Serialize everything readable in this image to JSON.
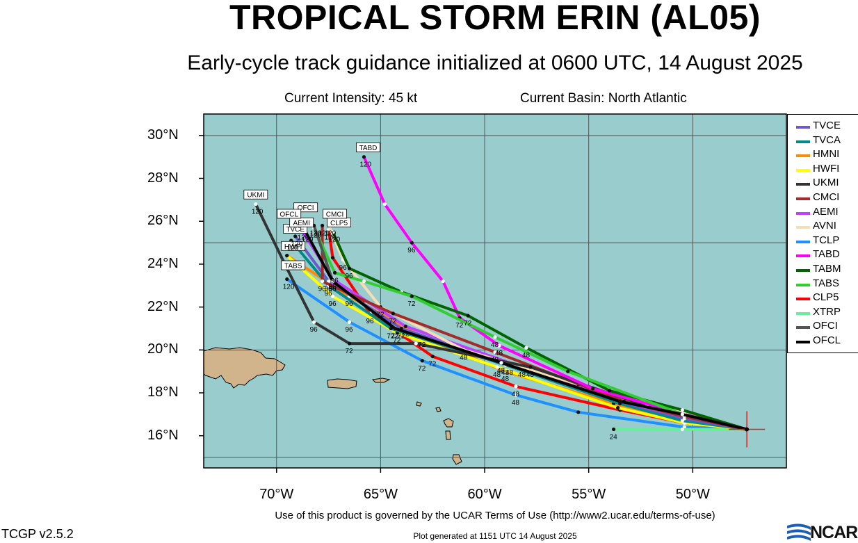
{
  "title": "TROPICAL STORM ERIN (AL05)",
  "subtitle": "Early-cycle track guidance initialized at 0600 UTC, 14 August 2025",
  "current_intensity": "Current Intensity: 45 kt",
  "current_basin": "Current Basin: North Atlantic",
  "colors": {
    "ocean": "#99cccc",
    "land": "#d2b48c",
    "grid": "#555555",
    "storm": "#e02020"
  },
  "axes": {
    "lon_range": [
      -73.5,
      -45.5
    ],
    "lat_range": [
      14.5,
      31
    ],
    "x_ticks": [
      "70°W",
      "65°W",
      "60°W",
      "55°W",
      "50°W"
    ],
    "y_ticks": [
      "30°N",
      "28°N",
      "26°N",
      "24°N",
      "22°N",
      "20°N",
      "18°N",
      "16°N"
    ]
  },
  "storm_position": {
    "lon": -47.4,
    "lat": 16.3
  },
  "legend": [
    {
      "name": "TVCE",
      "color": "#6a5acd"
    },
    {
      "name": "TVCA",
      "color": "#008b8b"
    },
    {
      "name": "HMNI",
      "color": "#ff8c00"
    },
    {
      "name": "HWFI",
      "color": "#ffff00"
    },
    {
      "name": "UKMI",
      "color": "#333333"
    },
    {
      "name": "CMCI",
      "color": "#a52a2a"
    },
    {
      "name": "AEMI",
      "color": "#bf40ff"
    },
    {
      "name": "AVNI",
      "color": "#f5deb3"
    },
    {
      "name": "TCLP",
      "color": "#1e90ff"
    },
    {
      "name": "TABD",
      "color": "#ff00ff"
    },
    {
      "name": "TABM",
      "color": "#006400"
    },
    {
      "name": "TABS",
      "color": "#32cd32"
    },
    {
      "name": "CLP5",
      "color": "#ff0000"
    },
    {
      "name": "XTRP",
      "color": "#66ee99"
    },
    {
      "name": "OFCI",
      "color": "#555555"
    },
    {
      "name": "OFCL",
      "color": "#000000"
    }
  ],
  "tracks": [
    {
      "name": "TCLP",
      "color": "#1e90ff",
      "points": [
        [
          -47.4,
          16.3
        ],
        [
          -50.4,
          16.4
        ],
        [
          -55.5,
          17.1
        ],
        [
          -58.5,
          17.9
        ],
        [
          -63,
          19.5
        ],
        [
          -66.5,
          21.3
        ],
        [
          -69.5,
          23.3
        ]
      ],
      "label_lon": -69.8,
      "label_lat": 23.3,
      "show_label": false,
      "tau": [
        [
          -58.5,
          17.9,
          "48"
        ],
        [
          -63,
          19.5,
          "72"
        ],
        [
          -66.5,
          21.3,
          "96"
        ],
        [
          -69.5,
          23.3,
          "120"
        ]
      ]
    },
    {
      "name": "XTRP",
      "color": "#66ee99",
      "points": [
        [
          -47.4,
          16.3
        ],
        [
          -50.5,
          16.3
        ],
        [
          -53.8,
          16.3
        ]
      ],
      "tau": [
        [
          -53.8,
          16.3,
          "24"
        ]
      ]
    },
    {
      "name": "CLP5",
      "color": "#ff0000",
      "points": [
        [
          -47.4,
          16.3
        ],
        [
          -50.4,
          16.6
        ],
        [
          -53.5,
          17.2
        ],
        [
          -58.5,
          18.3
        ],
        [
          -62.5,
          19.7
        ],
        [
          -65.5,
          21.7
        ],
        [
          -67.3,
          24.3
        ],
        [
          -67.5,
          25.6
        ]
      ],
      "label_lon": -67,
      "label_lat": 25.9,
      "tau": [
        [
          -58.5,
          18.3,
          "48"
        ],
        [
          -62.5,
          19.7,
          "72"
        ],
        [
          -65.5,
          21.7,
          "96"
        ],
        [
          -67.5,
          25.6,
          "120"
        ]
      ]
    },
    {
      "name": "HMNI",
      "color": "#ff8c00",
      "points": [
        [
          -47.4,
          16.3
        ],
        [
          -50.4,
          16.7
        ],
        [
          -53.8,
          17.5
        ],
        [
          -59,
          19
        ],
        [
          -63,
          20.6
        ],
        [
          -66.5,
          22.5
        ],
        [
          -69.5,
          24.4
        ]
      ],
      "tau": [
        [
          -59,
          19,
          "48"
        ],
        [
          -63,
          20.6,
          "72"
        ],
        [
          -66.5,
          22.5,
          "96"
        ],
        [
          -69.5,
          24.4,
          "120"
        ]
      ]
    },
    {
      "name": "HWFI",
      "color": "#ffff00",
      "points": [
        [
          -47.4,
          16.3
        ],
        [
          -50.4,
          16.6
        ],
        [
          -53.6,
          17.3
        ],
        [
          -59.4,
          19.2
        ],
        [
          -64.2,
          20.8
        ],
        [
          -67.3,
          22.5
        ],
        [
          -69.5,
          24.4
        ]
      ],
      "label_lon": -69.2,
      "label_lat": 24.8,
      "tau": [
        [
          -59.4,
          19.2,
          "48"
        ],
        [
          -64.2,
          20.8,
          "72"
        ],
        [
          -67.3,
          22.5,
          "96"
        ],
        [
          -69.5,
          24.4,
          "120"
        ]
      ]
    },
    {
      "name": "TVCA",
      "color": "#008b8b",
      "points": [
        [
          -47.4,
          16.3
        ],
        [
          -50.5,
          16.7
        ],
        [
          -53.5,
          17.5
        ],
        [
          -59,
          19.3
        ],
        [
          -64.5,
          21
        ],
        [
          -67.5,
          23
        ],
        [
          -69.3,
          25.1
        ]
      ],
      "tau": [
        [
          -59,
          19.3,
          "48"
        ],
        [
          -64.5,
          21,
          "72"
        ],
        [
          -67.5,
          23,
          "96"
        ],
        [
          -69.3,
          25.1,
          "120"
        ]
      ]
    },
    {
      "name": "TVCE",
      "color": "#6a5acd",
      "points": [
        [
          -47.4,
          16.3
        ],
        [
          -50.4,
          16.8
        ],
        [
          -53.5,
          17.6
        ],
        [
          -58.8,
          19.3
        ],
        [
          -64,
          21
        ],
        [
          -67.5,
          23.2
        ],
        [
          -69.1,
          25.3
        ]
      ],
      "label_lon": -69.1,
      "label_lat": 25.6,
      "tau": [
        [
          -58.8,
          19.3,
          "48"
        ],
        [
          -64,
          21,
          "72"
        ],
        [
          -67.5,
          23.2,
          "96"
        ],
        [
          -69.1,
          25.3,
          "120"
        ]
      ]
    },
    {
      "name": "AEMI",
      "color": "#bf40ff",
      "points": [
        [
          -47.4,
          16.3
        ],
        [
          -50.4,
          16.9
        ],
        [
          -53.5,
          17.6
        ],
        [
          -58.2,
          19.2
        ],
        [
          -63.8,
          21.1
        ],
        [
          -67.3,
          23.3
        ],
        [
          -68.8,
          25.6
        ]
      ],
      "label_lon": -68.8,
      "label_lat": 25.9,
      "tau": [
        [
          -58.2,
          19.2,
          "48"
        ],
        [
          -63.8,
          21.1,
          "72"
        ],
        [
          -67.3,
          23.3,
          "96"
        ],
        [
          -68.8,
          25.6,
          "120"
        ]
      ]
    },
    {
      "name": "AVNI",
      "color": "#f5deb3",
      "points": [
        [
          -47.4,
          16.3
        ],
        [
          -50.5,
          17.1
        ],
        [
          -55.5,
          18.4
        ],
        [
          -61,
          20
        ],
        [
          -65,
          22
        ],
        [
          -66.8,
          24.2
        ],
        [
          -67.5,
          25.8
        ]
      ],
      "tau": [
        [
          -61,
          20,
          "48"
        ],
        [
          -65,
          22,
          "72"
        ],
        [
          -66.8,
          24.2,
          "96"
        ],
        [
          -67.5,
          25.8,
          "120"
        ]
      ]
    },
    {
      "name": "CMCI",
      "color": "#a52a2a",
      "points": [
        [
          -47.4,
          16.3
        ],
        [
          -50.4,
          16.9
        ],
        [
          -53.3,
          17.6
        ],
        [
          -59.5,
          19.9
        ],
        [
          -64.4,
          21.7
        ],
        [
          -67.8,
          23.2
        ],
        [
          -67.8,
          25.8
        ]
      ],
      "label_lon": -67.2,
      "label_lat": 26.3,
      "tau": [
        [
          -59.5,
          19.9,
          "48"
        ],
        [
          -64.4,
          21.7,
          "72"
        ],
        [
          -67.8,
          23.2,
          "96"
        ],
        [
          -67.8,
          25.8,
          "120"
        ]
      ]
    },
    {
      "name": "UKMI",
      "color": "#333333",
      "points": [
        [
          -47.4,
          16.3
        ],
        [
          -52.2,
          17.4
        ],
        [
          -57.8,
          19.2
        ],
        [
          -63.3,
          20.3
        ],
        [
          -66.5,
          20.3
        ],
        [
          -68.2,
          21.3
        ],
        [
          -69.5,
          23.8
        ],
        [
          -71,
          26.8
        ]
      ],
      "label_lon": -71,
      "label_lat": 27.2,
      "tau": [
        [
          -57.8,
          19.2,
          "48"
        ],
        [
          -66.5,
          20.3,
          "72"
        ],
        [
          -68.2,
          21.3,
          "96"
        ],
        [
          -71,
          26.8,
          "120"
        ]
      ]
    },
    {
      "name": "TABD",
      "color": "#ff00ff",
      "points": [
        [
          -47.4,
          16.3
        ],
        [
          -50.4,
          17
        ],
        [
          -54.8,
          18.2
        ],
        [
          -59.3,
          20.2
        ],
        [
          -61.2,
          21.5
        ],
        [
          -62,
          23.2
        ],
        [
          -63.5,
          25
        ],
        [
          -64.8,
          26.8
        ],
        [
          -65.8,
          29
        ]
      ],
      "label_lon": -65.6,
      "label_lat": 29.4,
      "tau": [
        [
          -59.3,
          20.2,
          "48"
        ],
        [
          -61.2,
          21.5,
          "72"
        ],
        [
          -63.5,
          25,
          "96"
        ],
        [
          -65.8,
          29,
          "120"
        ]
      ]
    },
    {
      "name": "TABM",
      "color": "#006400",
      "points": [
        [
          -47.4,
          16.3
        ],
        [
          -50.5,
          17.2
        ],
        [
          -54,
          18.1
        ],
        [
          -58,
          20.1
        ],
        [
          -60.8,
          21.6
        ],
        [
          -64,
          22.7
        ],
        [
          -66.5,
          23.8
        ],
        [
          -67.3,
          25.5
        ]
      ],
      "tau": [
        [
          -58,
          20.1,
          "48"
        ],
        [
          -60.8,
          21.6,
          "72"
        ],
        [
          -66.5,
          23.8,
          "96"
        ],
        [
          -67.3,
          25.5,
          "120"
        ]
      ]
    },
    {
      "name": "TABS",
      "color": "#32cd32",
      "points": [
        [
          -47.4,
          16.3
        ],
        [
          -50.5,
          17
        ],
        [
          -56,
          19
        ],
        [
          -59.5,
          20.6
        ],
        [
          -63.5,
          22.5
        ],
        [
          -65.8,
          23.2
        ],
        [
          -67.2,
          23.6
        ],
        [
          -68.2,
          25.7
        ]
      ],
      "label_lon": -69.2,
      "label_lat": 23.9,
      "tau": [
        [
          -59.5,
          20.6,
          "48"
        ],
        [
          -63.5,
          22.5,
          "72"
        ],
        [
          -67.2,
          23.6,
          "96"
        ],
        [
          -68.2,
          25.7,
          "120"
        ]
      ]
    },
    {
      "name": "OFCI",
      "color": "#555555",
      "points": [
        [
          -47.4,
          16.3
        ],
        [
          -50.5,
          17
        ],
        [
          -53.5,
          17.6
        ],
        [
          -59.2,
          19.4
        ],
        [
          -64.3,
          21
        ],
        [
          -67.3,
          23.2
        ],
        [
          -68.2,
          25.8
        ]
      ],
      "label_lon": -68.6,
      "label_lat": 26.6,
      "tau": [
        [
          -59.2,
          19.4,
          "48"
        ],
        [
          -64.3,
          21,
          "72"
        ],
        [
          -67.3,
          23.2,
          "96"
        ],
        [
          -68.2,
          25.8,
          "120"
        ]
      ]
    },
    {
      "name": "OFCL",
      "color": "#000000",
      "points": [
        [
          -47.4,
          16.3
        ],
        [
          -50.5,
          17
        ],
        [
          -53.5,
          17.6
        ],
        [
          -59.2,
          19.4
        ],
        [
          -64.3,
          21
        ],
        [
          -67.3,
          23.2
        ],
        [
          -68.6,
          25.5
        ]
      ],
      "label_lon": -69.4,
      "label_lat": 26.3,
      "tau": [
        [
          -59.2,
          19.4,
          "48"
        ],
        [
          -64.3,
          21,
          "72"
        ],
        [
          -67.3,
          23.2,
          "96"
        ],
        [
          -68.6,
          25.5,
          "120"
        ]
      ]
    }
  ],
  "footer": {
    "terms": "Use of this product is governed by the UCAR Terms of Use (http://www2.ucar.edu/terms-of-use)",
    "version": "TCGP v2.5.2",
    "generated": "Plot generated at 1151 UTC   14 August 2025",
    "logo_text": "NCAR"
  }
}
